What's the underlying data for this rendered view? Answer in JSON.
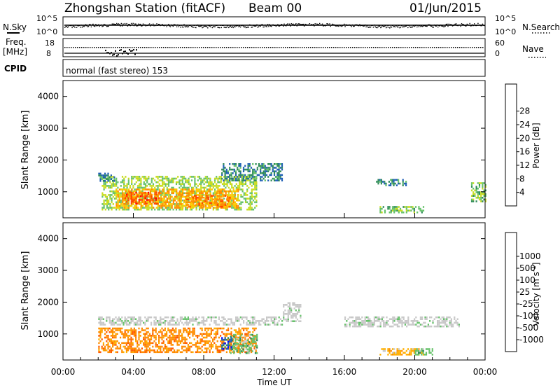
{
  "header": {
    "station": "Zhongshan Station (fitACF)",
    "beam": "Beam 00",
    "date": "01/Jun/2015"
  },
  "top_panels": {
    "nsky_label": "N.Sky",
    "nsky_ticks": [
      "10^5",
      "10^0"
    ],
    "nsearch_label": "N.Search",
    "nsearch_ticks": [
      "10^5",
      "10^0"
    ],
    "freq_label_1": "Freq.",
    "freq_label_2": "[MHz]",
    "freq_ticks": [
      "18",
      "8"
    ],
    "nave_label": "Nave",
    "nave_ticks": [
      "60",
      "0"
    ],
    "cpid_label": "CPID",
    "cpid_text": "normal (fast stereo) 153"
  },
  "colors": {
    "power_scale": [
      "#0000ff",
      "#1f5fb5",
      "#2e8b57",
      "#66c26a",
      "#c8dc1e",
      "#ffc800",
      "#ff8c00",
      "#ff4500",
      "#ff0000"
    ],
    "velocity_scale": [
      "#ff0000",
      "#ff5a00",
      "#ff8c00",
      "#ffb000",
      "#c8c8c8",
      "#c8c8c8",
      "#66c26a",
      "#2e8b57",
      "#1f5fb5",
      "#0000ff"
    ]
  },
  "chart_data": [
    {
      "type": "heatmap",
      "panel": "power",
      "xlabel": "",
      "ylabel": "Slant Range [km]",
      "xlim_hours": [
        0,
        24
      ],
      "ylim_km": [
        180,
        4500
      ],
      "y_ticks": [
        "1000",
        "2000",
        "3000",
        "4000"
      ],
      "colorbar": {
        "label": "Power [dB]",
        "ticks": [
          "4",
          "8",
          "12",
          "16",
          "20",
          "24",
          "28"
        ]
      },
      "regions": [
        {
          "t0": 2.2,
          "t1": 11.0,
          "r0": 450,
          "r1": 1500,
          "value": 14
        },
        {
          "t0": 3.0,
          "t1": 10.0,
          "r0": 500,
          "r1": 1100,
          "value": 22
        },
        {
          "t0": 3.5,
          "t1": 5.5,
          "r0": 600,
          "r1": 1000,
          "value": 27
        },
        {
          "t0": 7.0,
          "t1": 9.5,
          "r0": 550,
          "r1": 900,
          "value": 24
        },
        {
          "t0": 9.0,
          "t1": 12.5,
          "r0": 1350,
          "r1": 1900,
          "value": 7
        },
        {
          "t0": 2.0,
          "t1": 2.9,
          "r0": 1350,
          "r1": 1600,
          "value": 7
        },
        {
          "t0": 18.0,
          "t1": 20.5,
          "r0": 350,
          "r1": 550,
          "value": 12
        },
        {
          "t0": 17.8,
          "t1": 19.5,
          "r0": 1200,
          "r1": 1400,
          "value": 7
        },
        {
          "t0": 23.2,
          "t1": 24.0,
          "r0": 700,
          "r1": 1300,
          "value": 13
        }
      ]
    },
    {
      "type": "heatmap",
      "panel": "velocity",
      "xlabel": "Time UT",
      "ylabel": "Slant Range [km]",
      "xlim_hours": [
        0,
        24
      ],
      "ylim_km": [
        180,
        4500
      ],
      "x_ticks": [
        "00:00",
        "04:00",
        "08:00",
        "12:00",
        "16:00",
        "20:00",
        "00:00"
      ],
      "y_ticks": [
        "1000",
        "2000",
        "3000",
        "4000"
      ],
      "colorbar": {
        "label": "Velocity [m s^-1]",
        "ticks": [
          "-1000",
          "-500",
          "-100",
          "-25",
          "25",
          "100",
          "500",
          "1000"
        ]
      },
      "regions": [
        {
          "t0": 2.0,
          "t1": 11.0,
          "r0": 450,
          "r1": 1200,
          "value": -150
        },
        {
          "t0": 2.0,
          "t1": 12.5,
          "r0": 1300,
          "r1": 1550,
          "value": 0
        },
        {
          "t0": 9.5,
          "t1": 11.0,
          "r0": 400,
          "r1": 1000,
          "value": 60
        },
        {
          "t0": 9.0,
          "t1": 9.6,
          "r0": 500,
          "r1": 900,
          "value": 800
        },
        {
          "t0": 12.5,
          "t1": 13.5,
          "r0": 1400,
          "r1": 2000,
          "value": 0
        },
        {
          "t0": 16.0,
          "t1": 22.5,
          "r0": 1250,
          "r1": 1550,
          "value": 0
        },
        {
          "t0": 18.0,
          "t1": 20.5,
          "r0": 350,
          "r1": 550,
          "value": -60
        },
        {
          "t0": 20.0,
          "t1": 21.0,
          "r0": 350,
          "r1": 550,
          "value": 50
        }
      ]
    }
  ]
}
